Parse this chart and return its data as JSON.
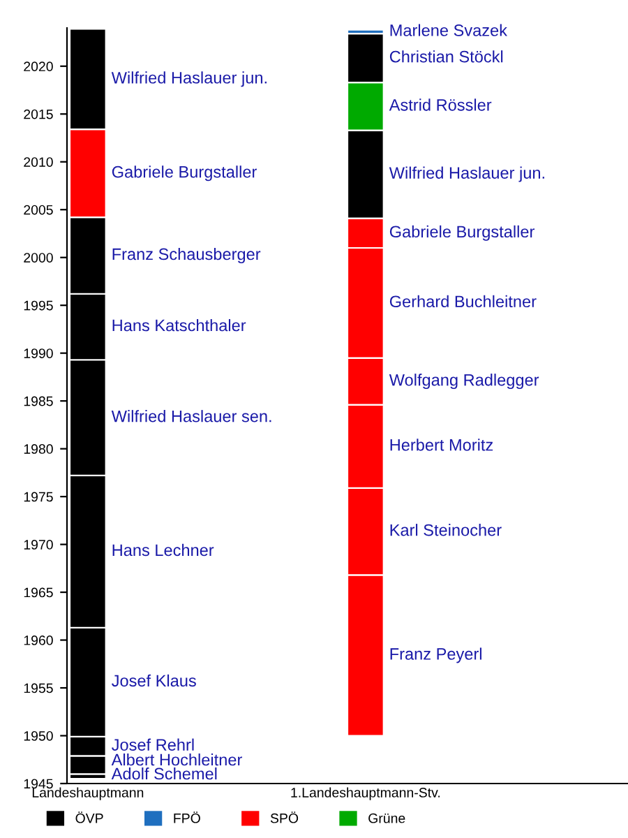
{
  "chart_data": {
    "type": "bar",
    "categories": [
      "Landeshauptmann",
      "1.Landeshauptmann-Stv."
    ],
    "ylim": [
      1945,
      2024
    ],
    "yticks": [
      1945,
      1950,
      1955,
      1960,
      1965,
      1970,
      1975,
      1980,
      1985,
      1990,
      1995,
      2000,
      2005,
      2010,
      2015,
      2020
    ],
    "legend": "bottom",
    "series": [
      {
        "name": "ÖVP",
        "color": "#000000",
        "values": [
          null,
          null
        ]
      },
      {
        "name": "FPÖ",
        "color": "#1f6fbf",
        "values": [
          null,
          null
        ]
      },
      {
        "name": "SPÖ",
        "color": "#ff0000",
        "values": [
          null,
          null
        ]
      },
      {
        "name": "Grüne",
        "color": "#00aa00",
        "values": [
          null,
          null
        ]
      },
      {
        "name": "Adolf Schemel",
        "color": "#000000",
        "base": [
          1945.5,
          null
        ],
        "values": [
          0.5,
          null
        ]
      },
      {
        "name": "Albert Hochleitner",
        "color": "#000000",
        "base": [
          1946.0,
          null
        ],
        "values": [
          1.9,
          null
        ]
      },
      {
        "name": "Josef Rehrl",
        "color": "#000000",
        "base": [
          1947.9,
          null
        ],
        "values": [
          2.0,
          null
        ]
      },
      {
        "name": "Josef Klaus",
        "color": "#000000",
        "base": [
          1949.9,
          null
        ],
        "values": [
          11.4,
          null
        ]
      },
      {
        "name": "Hans Lechner",
        "color": "#000000",
        "base": [
          1961.3,
          null
        ],
        "values": [
          15.9,
          null
        ]
      },
      {
        "name": "Wilfried Haslauer sen.",
        "color": "#000000",
        "base": [
          1977.2,
          null
        ],
        "values": [
          12.1,
          null
        ]
      },
      {
        "name": "Hans Katschthaler",
        "color": "#000000",
        "base": [
          1989.3,
          null
        ],
        "values": [
          6.9,
          null
        ]
      },
      {
        "name": "Franz Schausberger",
        "color": "#000000",
        "base": [
          1996.2,
          null
        ],
        "values": [
          8.0,
          null
        ]
      },
      {
        "name": "Gabriele Burgstaller",
        "color": "#ff0000",
        "base": [
          2004.2,
          null
        ],
        "values": [
          9.2,
          null
        ]
      },
      {
        "name": "Wilfried Haslauer jun.",
        "color": "#000000",
        "base": [
          2013.4,
          null
        ],
        "values": [
          10.5,
          null
        ]
      },
      {
        "name": "Franz Peyerl",
        "color": "#ff0000",
        "base": [
          null,
          1950.0
        ],
        "values": [
          null,
          16.8
        ]
      },
      {
        "name": "Karl Steinocher",
        "color": "#ff0000",
        "base": [
          null,
          1966.8
        ],
        "values": [
          null,
          9.1
        ]
      },
      {
        "name": "Herbert Moritz",
        "color": "#ff0000",
        "base": [
          null,
          1975.9
        ],
        "values": [
          null,
          8.7
        ]
      },
      {
        "name": "Wolfgang Radlegger",
        "color": "#ff0000",
        "base": [
          null,
          1984.6
        ],
        "values": [
          null,
          4.9
        ]
      },
      {
        "name": "Gerhard Buchleitner",
        "color": "#ff0000",
        "base": [
          null,
          1989.5
        ],
        "values": [
          null,
          11.5
        ]
      },
      {
        "name": "Gabriele Burgstaller",
        "color": "#ff0000",
        "base": [
          null,
          2001.0
        ],
        "values": [
          null,
          3.1
        ]
      },
      {
        "name": "Wilfried Haslauer jun.",
        "color": "#000000",
        "base": [
          null,
          2004.1
        ],
        "values": [
          null,
          9.2
        ]
      },
      {
        "name": "Astrid Rössler",
        "color": "#00aa00",
        "base": [
          null,
          2013.3
        ],
        "values": [
          null,
          5.0
        ]
      },
      {
        "name": "Christian Stöckl",
        "color": "#000000",
        "base": [
          null,
          2018.3
        ],
        "values": [
          null,
          5.1
        ]
      },
      {
        "name": "Marlene Svazek",
        "color": "#1f6fbf",
        "base": [
          null,
          2023.4
        ],
        "values": [
          null,
          0.4
        ]
      }
    ]
  }
}
